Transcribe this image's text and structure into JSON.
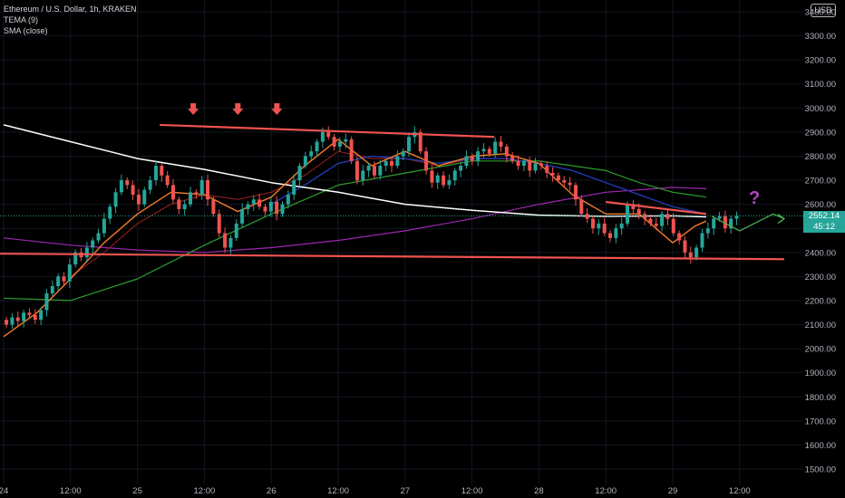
{
  "legend": {
    "symbol": "Ethereum / U.S. Dollar, 1h, KRAKEN",
    "indicator_1": "TEMA (9)",
    "indicator_2": "SMA (close)"
  },
  "currency_button": "USD",
  "last_price": {
    "value": "2552.14",
    "countdown": "45:12",
    "color": "#26a69a"
  },
  "annotation_question": "?",
  "colors": {
    "background": "#000000",
    "up": "#26a69a",
    "down": "#ef5350",
    "sma_white": "#ffffff",
    "orange": "#f57c2a",
    "darkred": "#8b1d1d",
    "blue": "#1f3fbf",
    "green": "#2e9e2e",
    "purple": "#9c27b0",
    "trendline": "#ef5350",
    "projection": "#4caf50",
    "question": "#ab47bc"
  },
  "chart_data": {
    "type": "candlestick",
    "title": "",
    "x_tick_labels": [
      "24",
      "12:00",
      "25",
      "12:00",
      "26",
      "12:00",
      "27",
      "12:00",
      "28",
      "12:00",
      "29",
      "12:00"
    ],
    "y_tick_labels": [
      "3400.00",
      "3300.00",
      "3200.00",
      "3100.00",
      "3000.00",
      "2900.00",
      "2800.00",
      "2700.00",
      "2600.00",
      "2500.00",
      "2400.00",
      "2300.00",
      "2200.00",
      "2100.00",
      "2000.00",
      "1900.00",
      "1800.00",
      "1700.00",
      "1600.00",
      "1500.00"
    ],
    "ylim": [
      1470,
      3430
    ],
    "x_range_hours": [
      0,
      132
    ],
    "candles_open_close": [
      [
        2120,
        2100
      ],
      [
        2100,
        2130
      ],
      [
        2130,
        2115
      ],
      [
        2115,
        2150
      ],
      [
        2150,
        2140
      ],
      [
        2140,
        2120
      ],
      [
        2120,
        2160
      ],
      [
        2160,
        2230
      ],
      [
        2230,
        2260
      ],
      [
        2260,
        2300
      ],
      [
        2300,
        2280
      ],
      [
        2280,
        2350
      ],
      [
        2350,
        2400
      ],
      [
        2400,
        2380
      ],
      [
        2380,
        2420
      ],
      [
        2420,
        2450
      ],
      [
        2450,
        2480
      ],
      [
        2480,
        2540
      ],
      [
        2540,
        2590
      ],
      [
        2590,
        2650
      ],
      [
        2650,
        2700
      ],
      [
        2700,
        2680
      ],
      [
        2680,
        2640
      ],
      [
        2640,
        2600
      ],
      [
        2600,
        2660
      ],
      [
        2660,
        2700
      ],
      [
        2700,
        2760
      ],
      [
        2760,
        2720
      ],
      [
        2720,
        2680
      ],
      [
        2680,
        2620
      ],
      [
        2620,
        2580
      ],
      [
        2580,
        2600
      ],
      [
        2600,
        2650
      ],
      [
        2650,
        2640
      ],
      [
        2640,
        2700
      ],
      [
        2700,
        2620
      ],
      [
        2620,
        2560
      ],
      [
        2560,
        2480
      ],
      [
        2480,
        2420
      ],
      [
        2420,
        2460
      ],
      [
        2460,
        2520
      ],
      [
        2520,
        2580
      ],
      [
        2580,
        2600
      ],
      [
        2600,
        2620
      ],
      [
        2620,
        2590
      ],
      [
        2590,
        2570
      ],
      [
        2570,
        2610
      ],
      [
        2610,
        2560
      ],
      [
        2560,
        2600
      ],
      [
        2600,
        2640
      ],
      [
        2640,
        2700
      ],
      [
        2700,
        2760
      ],
      [
        2760,
        2800
      ],
      [
        2800,
        2820
      ],
      [
        2820,
        2860
      ],
      [
        2860,
        2900
      ],
      [
        2900,
        2880
      ],
      [
        2880,
        2840
      ],
      [
        2840,
        2860
      ],
      [
        2860,
        2870
      ],
      [
        2870,
        2780
      ],
      [
        2780,
        2700
      ],
      [
        2700,
        2740
      ],
      [
        2740,
        2760
      ],
      [
        2760,
        2720
      ],
      [
        2720,
        2760
      ],
      [
        2760,
        2780
      ],
      [
        2780,
        2760
      ],
      [
        2760,
        2800
      ],
      [
        2800,
        2820
      ],
      [
        2820,
        2880
      ],
      [
        2880,
        2900
      ],
      [
        2900,
        2820
      ],
      [
        2820,
        2740
      ],
      [
        2740,
        2690
      ],
      [
        2690,
        2720
      ],
      [
        2720,
        2680
      ],
      [
        2680,
        2700
      ],
      [
        2700,
        2740
      ],
      [
        2740,
        2760
      ],
      [
        2760,
        2800
      ],
      [
        2800,
        2780
      ],
      [
        2780,
        2820
      ],
      [
        2820,
        2830
      ],
      [
        2830,
        2810
      ],
      [
        2810,
        2860
      ],
      [
        2860,
        2840
      ],
      [
        2840,
        2800
      ],
      [
        2800,
        2780
      ],
      [
        2780,
        2760
      ],
      [
        2760,
        2780
      ],
      [
        2780,
        2740
      ],
      [
        2740,
        2770
      ],
      [
        2770,
        2760
      ],
      [
        2760,
        2730
      ],
      [
        2730,
        2720
      ],
      [
        2720,
        2700
      ],
      [
        2700,
        2690
      ],
      [
        2690,
        2680
      ],
      [
        2680,
        2620
      ],
      [
        2620,
        2560
      ],
      [
        2560,
        2540
      ],
      [
        2540,
        2500
      ],
      [
        2500,
        2520
      ],
      [
        2520,
        2480
      ],
      [
        2480,
        2460
      ],
      [
        2460,
        2500
      ],
      [
        2500,
        2520
      ],
      [
        2520,
        2600
      ],
      [
        2600,
        2580
      ],
      [
        2580,
        2560
      ],
      [
        2560,
        2540
      ],
      [
        2540,
        2520
      ],
      [
        2520,
        2510
      ],
      [
        2510,
        2560
      ],
      [
        2560,
        2540
      ],
      [
        2540,
        2480
      ],
      [
        2480,
        2450
      ],
      [
        2450,
        2400
      ],
      [
        2400,
        2380
      ],
      [
        2380,
        2420
      ],
      [
        2420,
        2480
      ],
      [
        2480,
        2500
      ],
      [
        2500,
        2540
      ],
      [
        2540,
        2550
      ],
      [
        2550,
        2500
      ],
      [
        2500,
        2540
      ],
      [
        2540,
        2552
      ]
    ],
    "sma_long_white": [
      [
        0,
        2930
      ],
      [
        12,
        2860
      ],
      [
        24,
        2790
      ],
      [
        36,
        2745
      ],
      [
        48,
        2690
      ],
      [
        60,
        2650
      ],
      [
        72,
        2600
      ],
      [
        84,
        2575
      ],
      [
        96,
        2555
      ],
      [
        108,
        2550
      ],
      [
        120,
        2552
      ],
      [
        126,
        2548
      ]
    ],
    "orange_line": [
      [
        0,
        2050
      ],
      [
        6,
        2150
      ],
      [
        12,
        2290
      ],
      [
        18,
        2440
      ],
      [
        24,
        2560
      ],
      [
        30,
        2650
      ],
      [
        36,
        2640
      ],
      [
        42,
        2570
      ],
      [
        48,
        2630
      ],
      [
        54,
        2760
      ],
      [
        60,
        2870
      ],
      [
        66,
        2760
      ],
      [
        72,
        2820
      ],
      [
        78,
        2760
      ],
      [
        84,
        2800
      ],
      [
        90,
        2810
      ],
      [
        96,
        2770
      ],
      [
        102,
        2640
      ],
      [
        108,
        2560
      ],
      [
        114,
        2560
      ],
      [
        120,
        2440
      ],
      [
        124,
        2510
      ],
      [
        126,
        2530
      ]
    ],
    "darkred_line": [
      [
        12,
        2300
      ],
      [
        18,
        2400
      ],
      [
        24,
        2520
      ],
      [
        30,
        2600
      ],
      [
        36,
        2640
      ],
      [
        42,
        2620
      ],
      [
        48,
        2650
      ],
      [
        54,
        2720
      ],
      [
        60,
        2820
      ],
      [
        66,
        2790
      ],
      [
        72,
        2790
      ],
      [
        78,
        2760
      ],
      [
        84,
        2790
      ],
      [
        90,
        2790
      ],
      [
        96,
        2770
      ]
    ],
    "blue_line": [
      [
        48,
        2600
      ],
      [
        54,
        2680
      ],
      [
        60,
        2770
      ],
      [
        66,
        2800
      ],
      [
        72,
        2790
      ],
      [
        78,
        2770
      ],
      [
        84,
        2790
      ],
      [
        90,
        2790
      ],
      [
        96,
        2770
      ],
      [
        102,
        2740
      ],
      [
        108,
        2690
      ],
      [
        114,
        2640
      ],
      [
        120,
        2590
      ],
      [
        126,
        2560
      ]
    ],
    "green_line": [
      [
        0,
        2210
      ],
      [
        12,
        2200
      ],
      [
        24,
        2290
      ],
      [
        36,
        2430
      ],
      [
        48,
        2560
      ],
      [
        60,
        2680
      ],
      [
        72,
        2730
      ],
      [
        84,
        2780
      ],
      [
        96,
        2780
      ],
      [
        108,
        2740
      ],
      [
        114,
        2690
      ],
      [
        120,
        2650
      ],
      [
        126,
        2630
      ]
    ],
    "purple_line": [
      [
        0,
        2460
      ],
      [
        12,
        2430
      ],
      [
        24,
        2410
      ],
      [
        36,
        2400
      ],
      [
        48,
        2420
      ],
      [
        60,
        2450
      ],
      [
        72,
        2490
      ],
      [
        84,
        2540
      ],
      [
        96,
        2600
      ],
      [
        108,
        2650
      ],
      [
        120,
        2670
      ],
      [
        126,
        2665
      ]
    ],
    "resistance_line": [
      [
        28,
        2930
      ],
      [
        88,
        2880
      ]
    ],
    "descending_line": [
      [
        108,
        2610
      ],
      [
        126,
        2560
      ]
    ],
    "support_line": [
      [
        -2,
        2395
      ],
      [
        140,
        2372
      ]
    ],
    "arrow_hours": [
      34,
      42,
      49
    ],
    "projection_path": [
      [
        127,
        2550
      ],
      [
        132,
        2490
      ],
      [
        138,
        2560
      ],
      [
        140,
        2540
      ]
    ]
  }
}
